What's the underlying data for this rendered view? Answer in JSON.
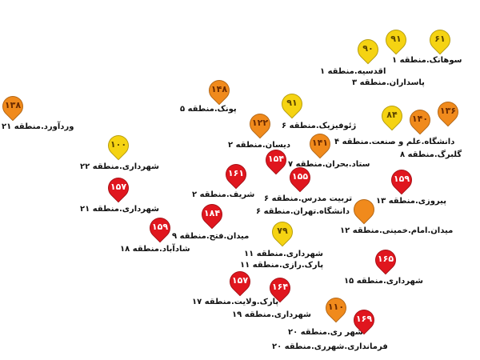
{
  "level_colors": {
    "red": "#e0161e",
    "orange": "#f08a1c",
    "yellow": "#f5d312"
  },
  "markers": [
    {
      "value": "۱۳۸",
      "level": "orange",
      "label": "وردآورد.منطقه ۲۱"
    },
    {
      "value": "۱۴۸",
      "level": "orange",
      "label": "پونک.منطقه ۵"
    },
    {
      "value": "۱۰۰",
      "level": "yellow",
      "label": "شهرداری.منطقه ۲۲"
    },
    {
      "value": "۱۵۷",
      "level": "red",
      "label": "شهرداری.منطقه ۲۱"
    },
    {
      "value": "۱۲۲",
      "level": "orange",
      "label": "دیسان.منطقه ۲"
    },
    {
      "value": "۹۱",
      "level": "yellow",
      "label": "ژئوفیزیک.منطقه ۶"
    },
    {
      "value": "۱۵۴",
      "level": "red",
      "label": ""
    },
    {
      "value": "۱۶۱",
      "level": "red",
      "label": "شریف.منطقه ۲"
    },
    {
      "value": "۱۵۵",
      "level": "red",
      "label": "تربیت مدرس.منطقه ۶"
    },
    {
      "value": "۱۴۱",
      "level": "orange",
      "label": "ستاد.بحران.منطقه ۷"
    },
    {
      "value": "",
      "level": "orange",
      "label": "میدان.امام.خمینی.منطقه ۱۲"
    },
    {
      "value": "۱۸۴",
      "level": "red",
      "label": "میدان.فتح.منطقه ۹"
    },
    {
      "value": "۱۵۹",
      "level": "red",
      "label": "شادآباد.منطقه ۱۸"
    },
    {
      "value": "۷۹",
      "level": "yellow",
      "label": "شهرداری.منطقه ۱۱"
    },
    {
      "value": "۹۰",
      "level": "yellow",
      "label": "اقدسیه.منطقه ۱"
    },
    {
      "value": "۹۱",
      "level": "yellow",
      "label": "پاسداران.منطقه ۳"
    },
    {
      "value": "۶۱",
      "level": "yellow",
      "label": "سوهانک.منطقه ۱"
    },
    {
      "value": "۸۴",
      "level": "yellow",
      "label": "دانشگاه.علم و صنعت.منطقه ۴"
    },
    {
      "value": "۱۳۶",
      "level": "orange",
      "label": ""
    },
    {
      "value": "۱۴۰",
      "level": "orange",
      "label": "گلبرگ.منطقه ۸"
    },
    {
      "value": "۱۵۹",
      "level": "red",
      "label": "پیروزی.منطقه ۱۳"
    },
    {
      "value": "۱۶۵",
      "level": "red",
      "label": "شهرداری.منطقه ۱۵"
    },
    {
      "value": "۱۵۷",
      "level": "red",
      "label": "پارک.ولایت.منطقه ۱۷"
    },
    {
      "value": "۱۶۴",
      "level": "red",
      "label": "شهرداری.منطقه ۱۹"
    },
    {
      "value": "۱۱۰",
      "level": "orange",
      "label": "شهر ری.منطقه ۲۰"
    },
    {
      "value": "۱۶۹",
      "level": "red",
      "label": "فرمانداری.شهرری.منطقه ۲۰"
    }
  ],
  "extra_labels": [
    "دانشگاه.تهران.منطقه ۶",
    "پارک.رازی.منطقه ۱۱"
  ]
}
